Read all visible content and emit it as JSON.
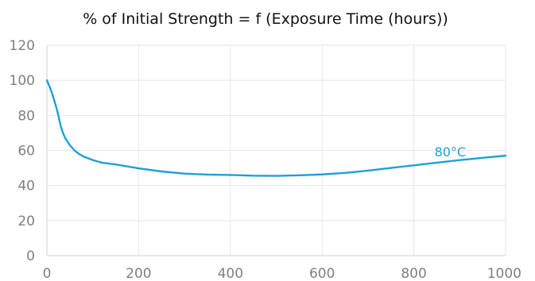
{
  "chart_data": {
    "type": "line",
    "title": "% of Initial Strength = f (Exposure Time (hours))",
    "xlabel": "",
    "ylabel": "",
    "xlim": [
      0,
      1000
    ],
    "ylim": [
      0,
      120
    ],
    "x_ticks": [
      0,
      200,
      400,
      600,
      800,
      1000
    ],
    "y_ticks": [
      0,
      20,
      40,
      60,
      80,
      100,
      120
    ],
    "grid": true,
    "series": [
      {
        "name": "80°C",
        "color": "#1f9fd8",
        "x": [
          0,
          5,
          10,
          15,
          20,
          25,
          30,
          35,
          40,
          50,
          60,
          70,
          80,
          100,
          120,
          150,
          200,
          250,
          300,
          350,
          400,
          450,
          500,
          550,
          600,
          650,
          700,
          750,
          800,
          850,
          900,
          950,
          1000
        ],
        "y": [
          100,
          97,
          93.5,
          89.5,
          85,
          80,
          74,
          70,
          67,
          63,
          60,
          58,
          56.5,
          54.5,
          53,
          52,
          49.8,
          48,
          46.8,
          46.2,
          46,
          45.6,
          45.5,
          45.8,
          46.3,
          47.2,
          48.5,
          50,
          51.5,
          53,
          54.5,
          55.8,
          57
        ]
      }
    ]
  }
}
